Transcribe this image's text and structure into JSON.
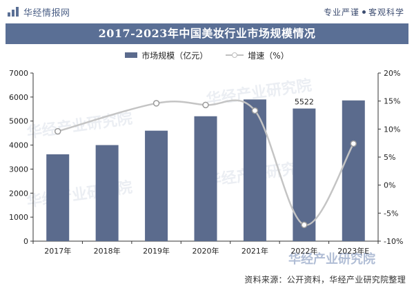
{
  "header": {
    "brand": "华经情报网",
    "tagline_left": "专业严谨",
    "tagline_right": "客观科学"
  },
  "colors": {
    "bar": "#5b6b8d",
    "line": "#c4c4c4",
    "title_bg": "#5a6f95",
    "watermark": "#c8d0dd"
  },
  "watermark": "华经产业研究院",
  "chart_data": {
    "type": "bar",
    "title": "2017-2023年中国美妆行业市场规模情况",
    "categories": [
      "2017年",
      "2018年",
      "2019年",
      "2020年",
      "2021年",
      "2022年",
      "2023年E"
    ],
    "series": [
      {
        "name": "市场规模（亿元）",
        "type": "bar",
        "axis": "left",
        "values": [
          3616,
          4000,
          4600,
          5200,
          5900,
          5522,
          5860
        ]
      },
      {
        "name": "增速（%）",
        "type": "line",
        "axis": "right",
        "values": [
          9.6,
          null,
          14.6,
          14.3,
          13.3,
          -7.1,
          7.4
        ]
      }
    ],
    "data_labels": [
      {
        "category": "2022年",
        "text": "5522"
      }
    ],
    "y_left": {
      "min": 0,
      "max": 7000,
      "ticks": [
        "0",
        "1000",
        "2000",
        "3000",
        "4000",
        "5000",
        "6000",
        "7000"
      ]
    },
    "y_right": {
      "min": -10,
      "max": 20,
      "ticks": [
        "-10%",
        "-5%",
        "0%",
        "5%",
        "10%",
        "15%",
        "20%"
      ]
    },
    "legend_position": "top-center",
    "grid": false
  },
  "footer": {
    "source": "资料来源：公开资料，华经产业研究院整理"
  }
}
